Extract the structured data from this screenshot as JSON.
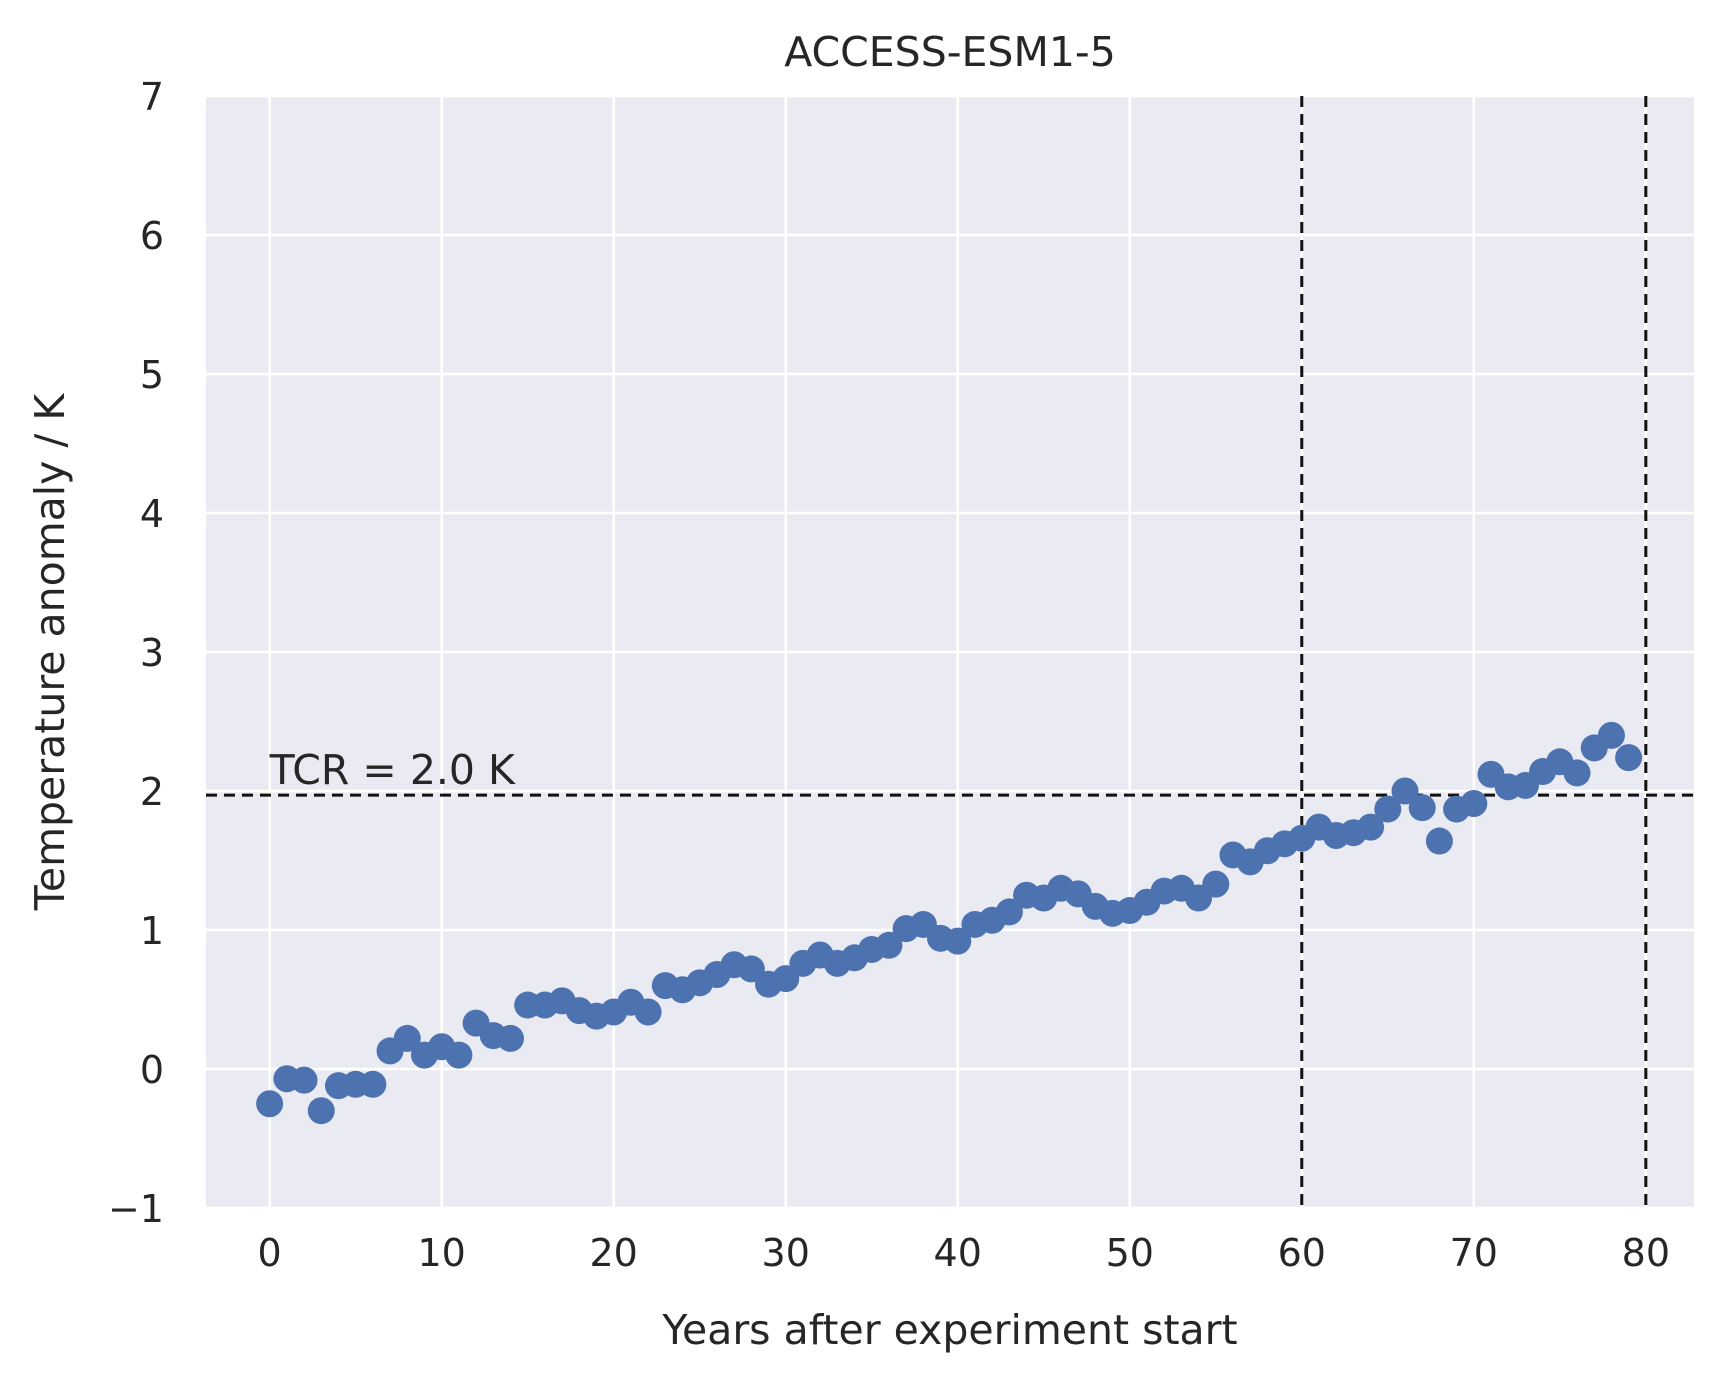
{
  "chart_data": {
    "type": "scatter",
    "title": "ACCESS-ESM1-5",
    "xlabel": "Years after experiment start",
    "ylabel": "Temperature anomaly / K",
    "xlim": [
      -3.7,
      82.8
    ],
    "ylim": [
      -1,
      7
    ],
    "xticks": [
      "0",
      "10",
      "20",
      "30",
      "40",
      "50",
      "60",
      "70",
      "80"
    ],
    "yticks": [
      "−1",
      "0",
      "1",
      "2",
      "3",
      "4",
      "5",
      "6",
      "7"
    ],
    "grid": true,
    "x": [
      0,
      1,
      2,
      3,
      4,
      5,
      6,
      7,
      8,
      9,
      10,
      11,
      12,
      13,
      14,
      15,
      16,
      17,
      18,
      19,
      20,
      21,
      22,
      23,
      24,
      25,
      26,
      27,
      28,
      29,
      30,
      31,
      32,
      33,
      34,
      35,
      36,
      37,
      38,
      39,
      40,
      41,
      42,
      43,
      44,
      45,
      46,
      47,
      48,
      49,
      50,
      51,
      52,
      53,
      54,
      55,
      56,
      57,
      58,
      59,
      60,
      61,
      62,
      63,
      64,
      65,
      66,
      67,
      68,
      69,
      70,
      71,
      72,
      73,
      74,
      75,
      76,
      77,
      78,
      79
    ],
    "y": [
      -0.25,
      -0.07,
      -0.08,
      -0.3,
      -0.12,
      -0.11,
      -0.11,
      0.13,
      0.22,
      0.1,
      0.16,
      0.1,
      0.33,
      0.24,
      0.22,
      0.46,
      0.46,
      0.49,
      0.42,
      0.38,
      0.41,
      0.48,
      0.41,
      0.6,
      0.57,
      0.62,
      0.68,
      0.75,
      0.72,
      0.61,
      0.65,
      0.76,
      0.82,
      0.76,
      0.8,
      0.86,
      0.89,
      1.01,
      1.04,
      0.94,
      0.92,
      1.04,
      1.07,
      1.13,
      1.25,
      1.23,
      1.3,
      1.26,
      1.17,
      1.12,
      1.14,
      1.2,
      1.28,
      1.3,
      1.23,
      1.33,
      1.54,
      1.49,
      1.57,
      1.62,
      1.66,
      1.74,
      1.68,
      1.7,
      1.74,
      1.87,
      2.0,
      1.88,
      1.64,
      1.87,
      1.91,
      2.12,
      2.03,
      2.04,
      2.14,
      2.21,
      2.13,
      2.31,
      2.4,
      2.24
    ],
    "point_color": "#4c72b0",
    "background": "#eaeaf2",
    "reference_lines": {
      "horizontal": [
        1.97
      ],
      "vertical": [
        60,
        80
      ],
      "style": "dashed",
      "color": "#111111"
    },
    "annotations": [
      {
        "text": "TCR = 2.0 K",
        "x": 0,
        "y": 2.05
      }
    ]
  }
}
